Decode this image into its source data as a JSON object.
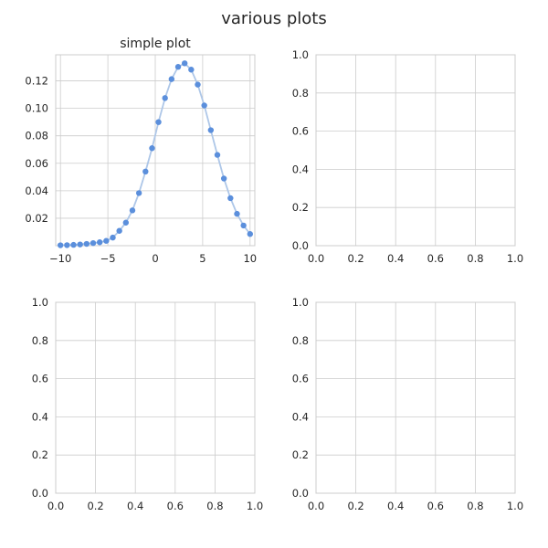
{
  "figure": {
    "title": "various plots"
  },
  "chart_data": [
    {
      "type": "line",
      "title": "simple plot",
      "markers": true,
      "line_color": "#aec7e8",
      "marker_color": "#5b8fdc",
      "grid": true,
      "xlim": [
        -10.5,
        10.5
      ],
      "ylim": [
        0.0,
        0.139
      ],
      "xticks": [
        -10,
        -5,
        0,
        5,
        10
      ],
      "xtick_labels": [
        "−10",
        "−5",
        "0",
        "5",
        "10"
      ],
      "yticks": [
        0.02,
        0.04,
        0.06,
        0.08,
        0.1,
        0.12
      ],
      "ytick_labels": [
        "0.02",
        "0.04",
        "0.06",
        "0.08",
        "0.10",
        "0.12"
      ],
      "series": [
        {
          "x": [
            -10.0,
            -9.31,
            -8.62,
            -7.93,
            -7.24,
            -6.55,
            -5.86,
            -5.17,
            -4.48,
            -3.79,
            -3.1,
            -2.41,
            -1.72,
            -1.03,
            -0.34,
            0.34,
            1.03,
            1.72,
            2.41,
            3.1,
            3.79,
            4.48,
            5.17,
            5.86,
            6.55,
            7.24,
            7.93,
            8.62,
            9.31,
            10.0
          ],
          "y": [
            0.0003,
            0.0004,
            0.0006,
            0.0009,
            0.0013,
            0.0019,
            0.0025,
            0.0035,
            0.0059,
            0.0108,
            0.0168,
            0.0257,
            0.0383,
            0.054,
            0.071,
            0.09,
            0.1075,
            0.1213,
            0.1302,
            0.1328,
            0.1282,
            0.1173,
            0.1021,
            0.0841,
            0.0661,
            0.0489,
            0.0346,
            0.0232,
            0.0147,
            0.0085
          ]
        }
      ]
    },
    {
      "type": "line",
      "title": "",
      "grid": true,
      "xlim": [
        0,
        1
      ],
      "ylim": [
        0,
        1
      ],
      "xticks": [
        0,
        0.2,
        0.4,
        0.6,
        0.8,
        1.0
      ],
      "xtick_labels": [
        "0.0",
        "0.2",
        "0.4",
        "0.6",
        "0.8",
        "1.0"
      ],
      "yticks": [
        0,
        0.2,
        0.4,
        0.6,
        0.8,
        1.0
      ],
      "ytick_labels": [
        "0.0",
        "0.2",
        "0.4",
        "0.6",
        "0.8",
        "1.0"
      ],
      "series": []
    },
    {
      "type": "line",
      "title": "",
      "grid": true,
      "xlim": [
        0,
        1
      ],
      "ylim": [
        0,
        1
      ],
      "xticks": [
        0,
        0.2,
        0.4,
        0.6,
        0.8,
        1.0
      ],
      "xtick_labels": [
        "0.0",
        "0.2",
        "0.4",
        "0.6",
        "0.8",
        "1.0"
      ],
      "yticks": [
        0,
        0.2,
        0.4,
        0.6,
        0.8,
        1.0
      ],
      "ytick_labels": [
        "0.0",
        "0.2",
        "0.4",
        "0.6",
        "0.8",
        "1.0"
      ],
      "series": []
    },
    {
      "type": "line",
      "title": "",
      "grid": true,
      "xlim": [
        0,
        1
      ],
      "ylim": [
        0,
        1
      ],
      "xticks": [
        0,
        0.2,
        0.4,
        0.6,
        0.8,
        1.0
      ],
      "xtick_labels": [
        "0.0",
        "0.2",
        "0.4",
        "0.6",
        "0.8",
        "1.0"
      ],
      "yticks": [
        0,
        0.2,
        0.4,
        0.6,
        0.8,
        1.0
      ],
      "ytick_labels": [
        "0.0",
        "0.2",
        "0.4",
        "0.6",
        "0.8",
        "1.0"
      ],
      "series": []
    }
  ]
}
